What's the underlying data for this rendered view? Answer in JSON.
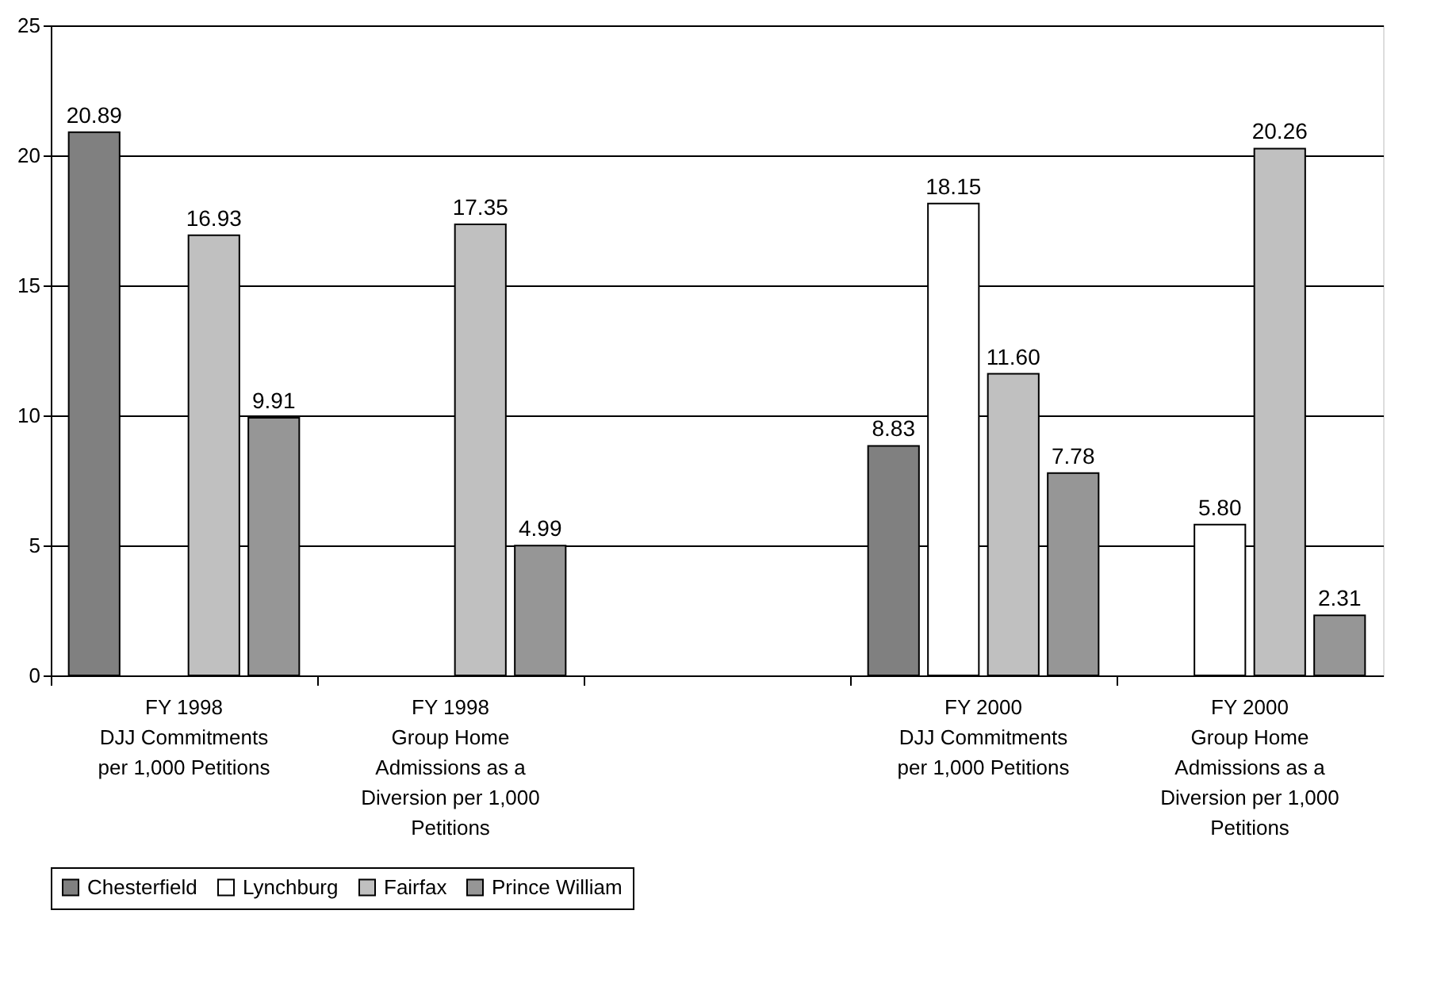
{
  "chart_data": {
    "type": "bar",
    "categories": [
      "FY 1998\nDJJ Commitments\nper 1,000 Petitions",
      "FY 1998\nGroup Home\nAdmissions as a\nDiversion per 1,000\nPetitions",
      null,
      "FY 2000\nDJJ Commitments\nper 1,000 Petitions",
      "FY 2000\nGroup Home\nAdmissions as a\nDiversion per 1,000\nPetitions"
    ],
    "series": [
      {
        "name": "Chesterfield",
        "color": "#808080",
        "values": [
          20.89,
          null,
          null,
          8.83,
          null
        ],
        "value_labels": [
          "20.89",
          null,
          null,
          "8.83",
          null
        ]
      },
      {
        "name": "Lynchburg",
        "color": "#ffffff",
        "values": [
          null,
          null,
          null,
          18.15,
          5.8
        ],
        "value_labels": [
          null,
          null,
          null,
          "18.15",
          "5.80"
        ]
      },
      {
        "name": "Fairfax",
        "color": "#c0c0c0",
        "values": [
          16.93,
          17.35,
          null,
          11.6,
          20.26
        ],
        "value_labels": [
          "16.93",
          "17.35",
          null,
          "11.60",
          "20.26"
        ]
      },
      {
        "name": "Prince William",
        "color": "#969696",
        "values": [
          9.91,
          4.99,
          null,
          7.78,
          2.31
        ],
        "value_labels": [
          "9.91",
          "4.99",
          null,
          "7.78",
          "2.31"
        ]
      }
    ],
    "ylim": [
      0,
      25
    ],
    "yticks": [
      0,
      5,
      10,
      15,
      20,
      25
    ],
    "grid": "y",
    "legend": "bottom"
  }
}
